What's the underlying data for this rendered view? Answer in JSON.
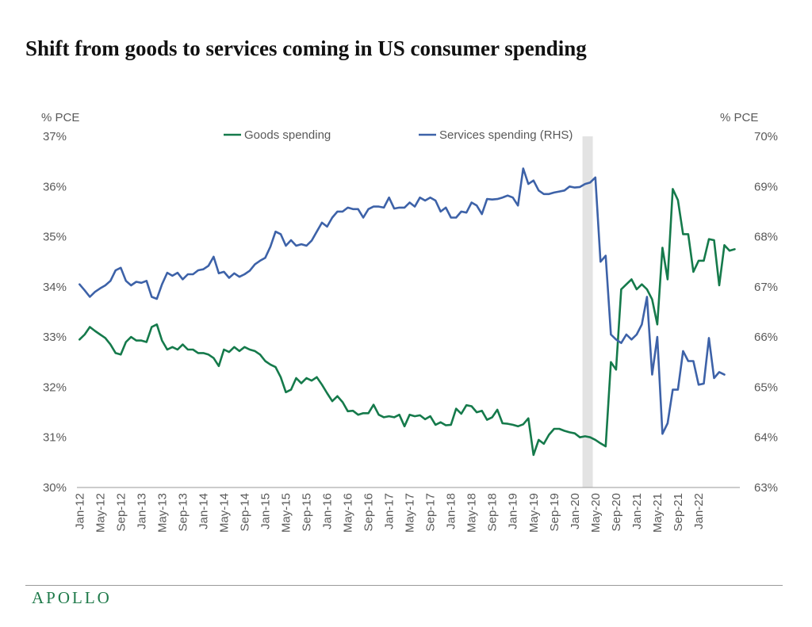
{
  "page": {
    "title": "Shift from goods to services coming in US consumer spending",
    "logo": "APOLLO"
  },
  "colors": {
    "goods": "#157a4b",
    "services": "#3d62a8",
    "recession": "#e3e3e3",
    "axis": "#9a9a9a"
  },
  "chart_data": {
    "type": "line",
    "title": "Shift from goods to services coming in US consumer spending",
    "left_axis": {
      "label": "% PCE",
      "ylim": [
        30,
        37
      ],
      "ticks": [
        "30%",
        "31%",
        "32%",
        "33%",
        "34%",
        "35%",
        "36%",
        "37%"
      ]
    },
    "right_axis": {
      "label": "% PCE",
      "ylim": [
        63,
        70
      ],
      "ticks": [
        "63%",
        "64%",
        "65%",
        "66%",
        "67%",
        "68%",
        "69%",
        "70%"
      ]
    },
    "x_tick_labels": [
      "Jan-12",
      "May-12",
      "Sep-12",
      "Jan-13",
      "May-13",
      "Sep-13",
      "Jan-14",
      "May-14",
      "Sep-14",
      "Jan-15",
      "May-15",
      "Sep-15",
      "Jan-16",
      "May-16",
      "Sep-16",
      "Jan-17",
      "May-17",
      "Sep-17",
      "Jan-18",
      "May-18",
      "Sep-18",
      "Jan-19",
      "May-19",
      "Sep-19",
      "Jan-20",
      "May-20",
      "Sep-20",
      "Jan-21",
      "May-21",
      "Sep-21",
      "Jan-22"
    ],
    "x_start": "Jan-12",
    "recession_shading": {
      "from": "Mar-20",
      "to": "Apr-20"
    },
    "legend_position": "top",
    "grid": false,
    "series": [
      {
        "name": "Goods spending",
        "axis": "left",
        "values": [
          32.95,
          33.05,
          33.2,
          33.12,
          33.05,
          32.98,
          32.85,
          32.68,
          32.65,
          32.9,
          33.0,
          32.93,
          32.93,
          32.9,
          33.2,
          33.25,
          32.93,
          32.75,
          32.8,
          32.75,
          32.85,
          32.75,
          32.75,
          32.68,
          32.68,
          32.65,
          32.58,
          32.42,
          32.75,
          32.7,
          32.8,
          32.72,
          32.8,
          32.75,
          32.72,
          32.65,
          32.52,
          32.45,
          32.4,
          32.2,
          31.9,
          31.95,
          32.18,
          32.08,
          32.18,
          32.13,
          32.2,
          32.05,
          31.88,
          31.72,
          31.82,
          31.7,
          31.52,
          31.53,
          31.45,
          31.48,
          31.48,
          31.65,
          31.45,
          31.4,
          31.42,
          31.4,
          31.45,
          31.22,
          31.45,
          31.42,
          31.44,
          31.36,
          31.42,
          31.25,
          31.3,
          31.24,
          31.25,
          31.57,
          31.47,
          31.64,
          31.62,
          31.5,
          31.53,
          31.35,
          31.4,
          31.55,
          31.28,
          31.27,
          31.25,
          31.22,
          31.26,
          31.38,
          30.65,
          30.95,
          30.87,
          31.05,
          31.17,
          31.17,
          31.13,
          31.1,
          31.08,
          31.0,
          31.02,
          31.0,
          30.95,
          30.88,
          30.82,
          32.5,
          32.35,
          33.95,
          34.05,
          34.15,
          33.95,
          34.05,
          33.95,
          33.75,
          33.25,
          34.78,
          34.15,
          35.95,
          35.73,
          35.05,
          35.05,
          34.3,
          34.52,
          34.52,
          34.95,
          34.93,
          34.03,
          34.83,
          34.72,
          34.75
        ]
      },
      {
        "name": "Services spending (RHS)",
        "axis": "right",
        "values": [
          67.05,
          66.93,
          66.8,
          66.9,
          66.97,
          67.03,
          67.12,
          67.33,
          67.38,
          67.12,
          67.03,
          67.1,
          67.08,
          67.12,
          66.8,
          66.76,
          67.05,
          67.28,
          67.22,
          67.28,
          67.15,
          67.25,
          67.25,
          67.33,
          67.35,
          67.42,
          67.6,
          67.27,
          67.3,
          67.18,
          67.27,
          67.2,
          67.25,
          67.32,
          67.45,
          67.52,
          67.58,
          67.8,
          68.1,
          68.05,
          67.82,
          67.93,
          67.82,
          67.85,
          67.82,
          67.92,
          68.1,
          68.28,
          68.2,
          68.38,
          68.5,
          68.5,
          68.58,
          68.55,
          68.55,
          68.38,
          68.55,
          68.6,
          68.6,
          68.58,
          68.78,
          68.56,
          68.58,
          68.58,
          68.68,
          68.6,
          68.78,
          68.72,
          68.78,
          68.72,
          68.5,
          68.58,
          68.38,
          68.38,
          68.5,
          68.48,
          68.68,
          68.62,
          68.45,
          68.75,
          68.74,
          68.75,
          68.78,
          68.82,
          68.78,
          68.62,
          69.36,
          69.05,
          69.12,
          68.92,
          68.85,
          68.85,
          68.88,
          68.9,
          68.92,
          69.0,
          68.98,
          68.99,
          69.05,
          69.08,
          69.18,
          67.5,
          67.62,
          66.05,
          65.95,
          65.88,
          66.05,
          65.95,
          66.05,
          66.25,
          66.8,
          65.25,
          66.0,
          64.07,
          64.28,
          64.95,
          64.95,
          65.72,
          65.52,
          65.52,
          65.05,
          65.07,
          65.98,
          65.18,
          65.3,
          65.25
        ]
      }
    ]
  }
}
